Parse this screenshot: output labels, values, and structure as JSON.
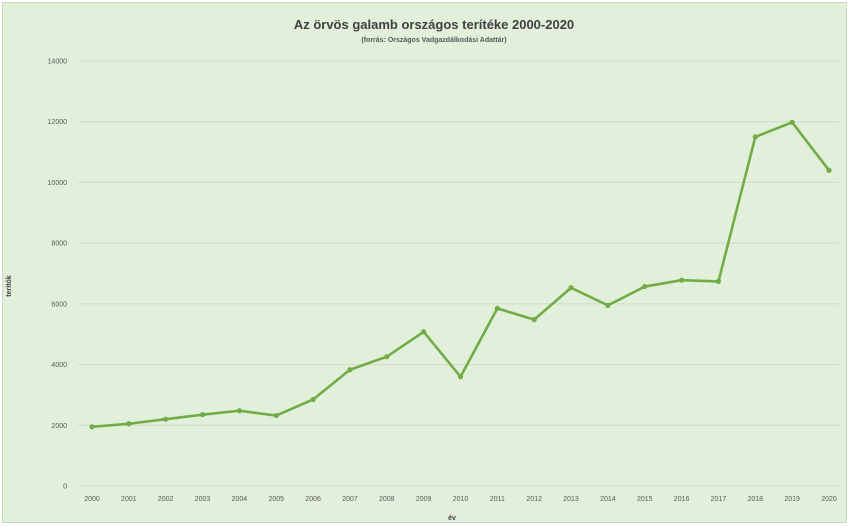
{
  "chart_data": {
    "type": "line",
    "title": "Az örvös galamb országos terítéke 2000-2020",
    "subtitle": "(forrás: Országos Vadgazdálkodási Adattár)",
    "xlabel": "év",
    "ylabel": "terítók",
    "categories": [
      "2000",
      "2001",
      "2002",
      "2003",
      "2004",
      "2005",
      "2006",
      "2007",
      "2008",
      "2009",
      "2010",
      "2011",
      "2012",
      "2013",
      "2014",
      "2015",
      "2016",
      "2017",
      "2018",
      "2019",
      "2020"
    ],
    "series": [
      {
        "values": [
          1950,
          2050,
          2200,
          2350,
          2480,
          2320,
          2850,
          3830,
          4260,
          5080,
          3600,
          5850,
          5480,
          6530,
          5950,
          6570,
          6780,
          6740,
          11500,
          11980,
          10400
        ]
      }
    ],
    "ylim": [
      0,
      14000
    ],
    "yticks": [
      0,
      2000,
      4000,
      6000,
      8000,
      10000,
      12000,
      14000
    ],
    "grid": true,
    "legend": "none",
    "colors": {
      "line": "#70ad47",
      "gridline": "#d0dcc8",
      "background": "#e2efda"
    }
  }
}
